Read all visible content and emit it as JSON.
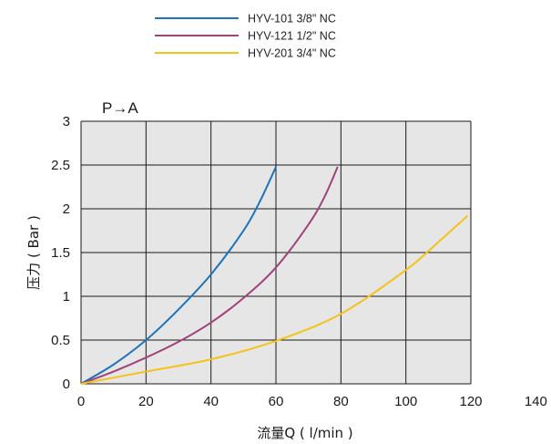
{
  "chart_data": {
    "type": "line",
    "annotation": "P→A",
    "xlabel": "流量Q ( l/min )",
    "ylabel": "压力 ( Bar )",
    "xlim": [
      0,
      140
    ],
    "ylim": [
      0,
      3
    ],
    "xticks": [
      "0",
      "20",
      "40",
      "60",
      "80",
      "100",
      "120",
      "140"
    ],
    "yticks": [
      "0",
      "0.5",
      "1",
      "1.5",
      "2",
      "2.5",
      "3"
    ],
    "grid": true,
    "legend_position": "top-center",
    "series": [
      {
        "name": "HYV-101 3/8\" NC",
        "color": "#1f73b7",
        "x": [
          0,
          10,
          20,
          30,
          40,
          50,
          55,
          60
        ],
        "y": [
          0,
          0.22,
          0.5,
          0.85,
          1.25,
          1.75,
          2.08,
          2.48
        ]
      },
      {
        "name": "HYV-121 1/2\" NC",
        "color": "#a0437a",
        "x": [
          0,
          10,
          20,
          30,
          40,
          50,
          60,
          70,
          75,
          79
        ],
        "y": [
          0,
          0.14,
          0.3,
          0.48,
          0.7,
          0.98,
          1.33,
          1.82,
          2.14,
          2.48
        ]
      },
      {
        "name": "HYV-201 3/4\" NC",
        "color": "#f5c21b",
        "x": [
          0,
          20,
          40,
          60,
          80,
          100,
          110,
          119
        ],
        "y": [
          0,
          0.14,
          0.28,
          0.49,
          0.8,
          1.3,
          1.62,
          1.92
        ]
      }
    ]
  }
}
